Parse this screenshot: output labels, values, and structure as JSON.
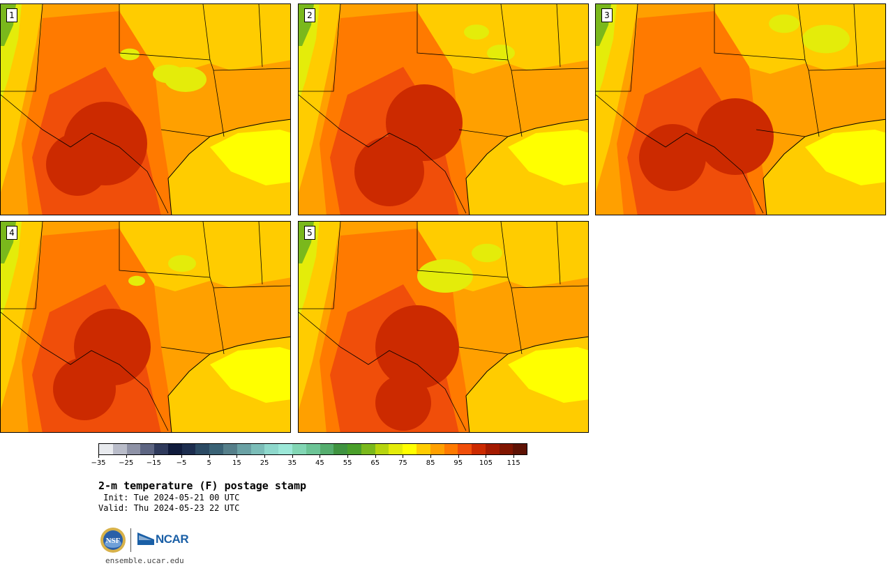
{
  "panels": [
    {
      "label": "1"
    },
    {
      "label": "2"
    },
    {
      "label": "3"
    },
    {
      "label": "4"
    },
    {
      "label": "5"
    }
  ],
  "colorbar": {
    "colors": [
      "#e8eaee",
      "#b9bcc9",
      "#8e92a6",
      "#5d6582",
      "#2f3a5c",
      "#101b3c",
      "#1c2d4e",
      "#2b4a63",
      "#3a6275",
      "#557f8a",
      "#6aa1a4",
      "#7bbdb8",
      "#8ed8cc",
      "#9ce8d8",
      "#82d6b4",
      "#6cc496",
      "#55ad6e",
      "#3f9340",
      "#4a9f2a",
      "#7ab81c",
      "#b6d40e",
      "#e4ec0a",
      "#ffff00",
      "#ffcc00",
      "#ffa000",
      "#ff7a00",
      "#f04e0a",
      "#cc2a00",
      "#a41a00",
      "#801500",
      "#5e1204"
    ],
    "tick_values": [
      "−35",
      "−25",
      "−15",
      "−5",
      "5",
      "15",
      "25",
      "35",
      "45",
      "55",
      "65",
      "75",
      "85",
      "95",
      "105",
      "115"
    ]
  },
  "title": "2-m temperature (F) postage stamp",
  "init_text": " Init: Tue 2024-05-21 00 UTC",
  "valid_text": "Valid: Thu 2024-05-23 22 UTC",
  "logo": {
    "nsf_text": "NSF",
    "ncar_text": "NCAR"
  },
  "url": "ensemble.ucar.edu"
}
